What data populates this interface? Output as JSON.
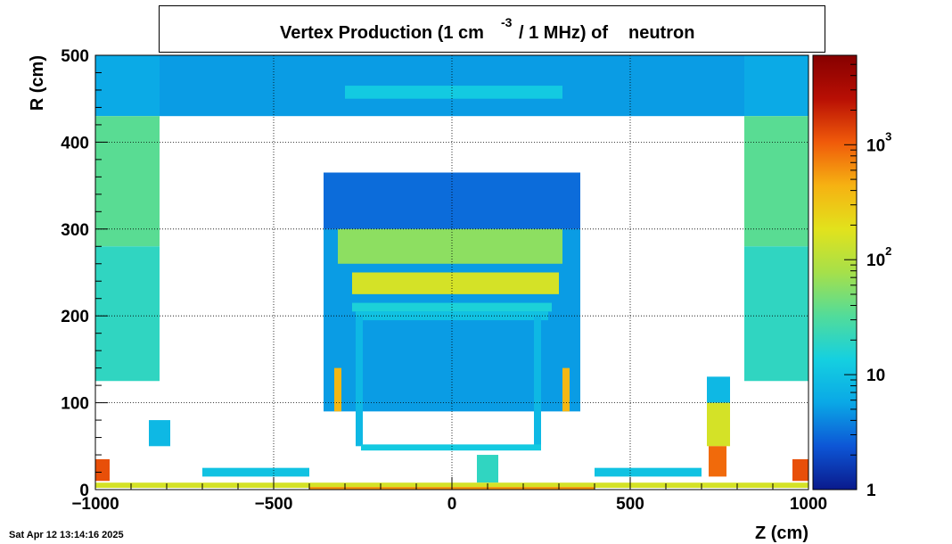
{
  "chart_data": {
    "type": "heatmap",
    "title": {
      "prefix": "Vertex Production (1 cm",
      "superscript": "-3",
      "middle": "/ 1 MHz) of",
      "particle": "neutron"
    },
    "xlabel": "Z (cm)",
    "ylabel": "R (cm)",
    "xlim": [
      -1000,
      1000
    ],
    "ylim": [
      0,
      500
    ],
    "x_ticks": [
      {
        "value": -1000,
        "label": "−1000"
      },
      {
        "value": -500,
        "label": "−500"
      },
      {
        "value": 0,
        "label": "0"
      },
      {
        "value": 500,
        "label": "500"
      },
      {
        "value": 1000,
        "label": "1000"
      }
    ],
    "y_ticks": [
      {
        "value": 0,
        "label": "0"
      },
      {
        "value": 100,
        "label": "100"
      },
      {
        "value": 200,
        "label": "200"
      },
      {
        "value": 300,
        "label": "300"
      },
      {
        "value": 400,
        "label": "400"
      },
      {
        "value": 500,
        "label": "500"
      }
    ],
    "grid": true,
    "colorbar": {
      "scale": "log",
      "range": [
        1,
        6000
      ],
      "ticks": [
        {
          "value": 1,
          "base": "1",
          "exp": ""
        },
        {
          "value": 10,
          "base": "10",
          "exp": ""
        },
        {
          "value": 100,
          "base": "10",
          "exp": "2"
        },
        {
          "value": 1000,
          "base": "10",
          "exp": "3"
        }
      ],
      "colors": [
        "#0a1a8c",
        "#0d56d6",
        "#0aa8e6",
        "#15d0e0",
        "#52dc9a",
        "#a6e04a",
        "#e2e21c",
        "#f6b212",
        "#f05a0a",
        "#b80f04",
        "#860000"
      ]
    },
    "regions": [
      {
        "z": [
          -1000,
          -820
        ],
        "r": [
          430,
          500
        ],
        "value": 6
      },
      {
        "z": [
          -1000,
          -820
        ],
        "r": [
          280,
          430
        ],
        "value": 35
      },
      {
        "z": [
          -1000,
          -820
        ],
        "r": [
          125,
          280
        ],
        "value": 20
      },
      {
        "z": [
          -820,
          820
        ],
        "r": [
          430,
          500
        ],
        "value": 5
      },
      {
        "z": [
          -300,
          310
        ],
        "r": [
          450,
          465
        ],
        "value": 12
      },
      {
        "z": [
          820,
          1000
        ],
        "r": [
          430,
          500
        ],
        "value": 6
      },
      {
        "z": [
          820,
          1000
        ],
        "r": [
          280,
          430
        ],
        "value": 35
      },
      {
        "z": [
          820,
          1000
        ],
        "r": [
          125,
          280
        ],
        "value": 20
      },
      {
        "z": [
          -360,
          360
        ],
        "r": [
          300,
          365
        ],
        "value": 3
      },
      {
        "z": [
          -360,
          360
        ],
        "r": [
          90,
          300
        ],
        "value": 5
      },
      {
        "z": [
          -320,
          310
        ],
        "r": [
          260,
          300
        ],
        "value": 60
      },
      {
        "z": [
          -280,
          300
        ],
        "r": [
          225,
          250
        ],
        "value": 150
      },
      {
        "z": [
          -280,
          280
        ],
        "r": [
          205,
          215
        ],
        "value": 15
      },
      {
        "z": [
          -270,
          270
        ],
        "r": [
          195,
          205
        ],
        "value": 10
      },
      {
        "z": [
          -330,
          -310
        ],
        "r": [
          90,
          140
        ],
        "value": 400
      },
      {
        "z": [
          310,
          330
        ],
        "r": [
          90,
          140
        ],
        "value": 400
      },
      {
        "z": [
          -270,
          -250
        ],
        "r": [
          50,
          200
        ],
        "value": 8
      },
      {
        "z": [
          230,
          250
        ],
        "r": [
          50,
          200
        ],
        "value": 8
      },
      {
        "z": [
          -255,
          250
        ],
        "r": [
          45,
          52
        ],
        "value": 12
      },
      {
        "z": [
          -850,
          -790
        ],
        "r": [
          50,
          80
        ],
        "value": 8
      },
      {
        "z": [
          -700,
          -400
        ],
        "r": [
          15,
          25
        ],
        "value": 10
      },
      {
        "z": [
          400,
          700
        ],
        "r": [
          15,
          25
        ],
        "value": 10
      },
      {
        "z": [
          70,
          130
        ],
        "r": [
          8,
          40
        ],
        "value": 20
      },
      {
        "z": [
          715,
          780
        ],
        "r": [
          100,
          130
        ],
        "value": 8
      },
      {
        "z": [
          715,
          780
        ],
        "r": [
          50,
          100
        ],
        "value": 150
      },
      {
        "z": [
          720,
          770
        ],
        "r": [
          15,
          50
        ],
        "value": 900
      },
      {
        "z": [
          -1000,
          -960
        ],
        "r": [
          10,
          35
        ],
        "value": 1200
      },
      {
        "z": [
          955,
          1000
        ],
        "r": [
          10,
          35
        ],
        "value": 1200
      },
      {
        "z": [
          -1000,
          1000
        ],
        "r": [
          2,
          8
        ],
        "value": 150
      },
      {
        "z": [
          -400,
          400
        ],
        "r": [
          0,
          3
        ],
        "value": 600
      }
    ]
  },
  "timestamp": "Sat Apr 12 13:14:16 2025"
}
